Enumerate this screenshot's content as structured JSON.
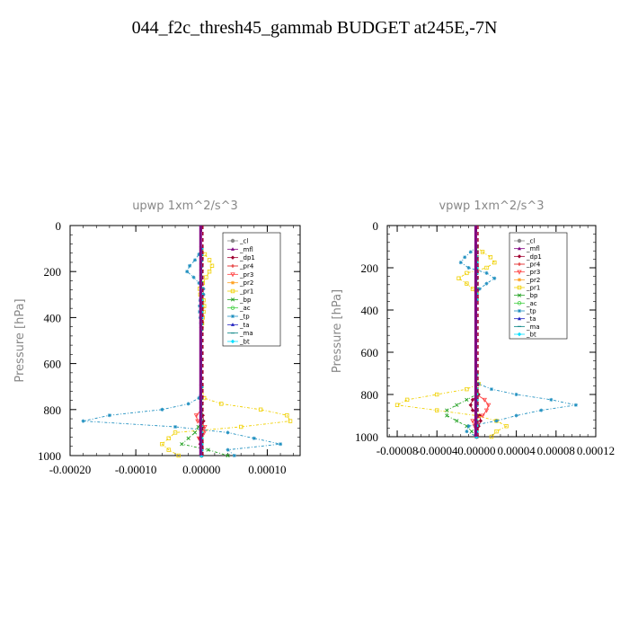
{
  "figure_title": "044_f2c_thresh45_gammab  BUDGET at245E,-7N",
  "legend_names": [
    "_cl",
    "_mfl",
    "_dp1",
    "_pr4",
    "_pr3",
    "_pr2",
    "_pr1",
    "_bp",
    "_ac",
    "_tp",
    "_ta",
    "_ma",
    "_bt"
  ],
  "legend_colors": [
    "#888888",
    "#800080",
    "#a00030",
    "#e01010",
    "#ff4040",
    "#ffa020",
    "#f0d000",
    "#20a020",
    "#40d040",
    "#2090c0",
    "#2020c0",
    "#008080",
    "#00e0ff"
  ],
  "chart_data": [
    {
      "type": "line",
      "title": "upwp   1xm^2/s^3",
      "xlabel": "",
      "ylabel": "Pressure [hPa]",
      "xlim": [
        -0.0002,
        0.00015
      ],
      "ylim": [
        1000,
        0
      ],
      "xticks": [
        "-0.00020",
        "-0.00010",
        "0.00000",
        "0.00010"
      ],
      "xtick_values": [
        -0.0002,
        -0.0001,
        0,
        0.0001
      ],
      "yticks": [
        "0",
        "200",
        "400",
        "600",
        "800",
        "1000"
      ],
      "ytick_values": [
        0,
        200,
        400,
        600,
        800,
        1000
      ],
      "legend": "top-right",
      "pressure": [
        100,
        125,
        150,
        175,
        200,
        225,
        250,
        275,
        300,
        325,
        350,
        375,
        400,
        425,
        450,
        700,
        750,
        775,
        800,
        825,
        850,
        875,
        900,
        925,
        950,
        975,
        1000
      ],
      "series": [
        {
          "name": "_cl",
          "values": [
            0,
            0,
            0,
            0,
            0,
            0,
            0,
            0,
            0,
            0,
            0,
            0,
            0,
            0,
            0,
            0,
            0,
            0,
            0,
            0,
            0,
            0,
            0,
            0,
            0,
            0,
            0
          ]
        },
        {
          "name": "_mfl",
          "values": [
            0,
            0,
            0,
            0,
            0,
            0,
            0,
            0,
            0,
            0,
            0,
            0,
            0,
            0,
            0,
            0,
            0,
            0,
            0,
            0,
            0,
            0,
            0,
            0,
            0,
            0,
            0
          ]
        },
        {
          "name": "_dp1",
          "values": [
            0,
            0,
            0,
            0,
            0,
            0,
            0,
            0,
            0,
            0,
            0,
            0,
            0,
            0,
            0,
            0,
            0,
            0,
            0,
            2e-06,
            3e-06,
            2e-06,
            0,
            -3e-06,
            -2e-06,
            0,
            0
          ]
        },
        {
          "name": "_pr4",
          "values": [
            0,
            0,
            0,
            0,
            0,
            0,
            0,
            0,
            0,
            0,
            0,
            0,
            0,
            0,
            0,
            0,
            0,
            0,
            0,
            0,
            0,
            0,
            0,
            0,
            0,
            0,
            0
          ]
        },
        {
          "name": "_pr3",
          "values": [
            0,
            0,
            0,
            0,
            0,
            0,
            0,
            0,
            0,
            0,
            0,
            0,
            0,
            0,
            0,
            0,
            0,
            0,
            0,
            -8e-06,
            -6e-06,
            5e-06,
            4e-06,
            -4e-06,
            0,
            0,
            0
          ]
        },
        {
          "name": "_pr2",
          "values": [
            0,
            0,
            0,
            0,
            0,
            0,
            0,
            0,
            0,
            0,
            0,
            0,
            0,
            0,
            0,
            0,
            0,
            0,
            0,
            0,
            0,
            0,
            0,
            0,
            0,
            0,
            0
          ]
        },
        {
          "name": "_pr1",
          "values": [
            0,
            5e-06,
            1.2e-05,
            1.6e-05,
            1.2e-05,
            7e-06,
            2e-06,
            -3e-06,
            -2e-06,
            3e-06,
            4e-06,
            3e-06,
            2e-06,
            1e-06,
            0,
            0,
            4e-06,
            3e-05,
            9e-05,
            0.00013,
            0.000135,
            6e-05,
            -4e-05,
            -5e-05,
            -6e-05,
            -5e-05,
            -3.5e-05
          ]
        },
        {
          "name": "_bp",
          "values": [
            0,
            0,
            0,
            0,
            0,
            0,
            0,
            0,
            0,
            0,
            0,
            0,
            0,
            0,
            0,
            0,
            0,
            0,
            0,
            0,
            0,
            -5e-06,
            -1e-05,
            -2e-05,
            -3e-05,
            1e-05,
            4e-05
          ]
        },
        {
          "name": "_ac",
          "values": [
            0,
            0,
            0,
            0,
            0,
            0,
            0,
            0,
            0,
            0,
            0,
            0,
            0,
            0,
            0,
            0,
            0,
            0,
            0,
            0,
            0,
            0,
            0,
            0,
            0,
            0,
            0
          ]
        },
        {
          "name": "_tp",
          "values": [
            0,
            -4e-06,
            -1e-05,
            -1.8e-05,
            -2.2e-05,
            -1.2e-05,
            -4e-06,
            3e-06,
            3e-06,
            -2e-06,
            -3e-06,
            -3e-06,
            -2e-06,
            -1e-06,
            0,
            0,
            -4e-06,
            -2e-05,
            -6e-05,
            -0.00014,
            -0.00018,
            -4e-05,
            4e-05,
            8e-05,
            0.00012,
            4e-05,
            5e-05
          ]
        },
        {
          "name": "_ta",
          "values": [
            0,
            0,
            0,
            0,
            0,
            0,
            0,
            0,
            0,
            0,
            0,
            0,
            0,
            0,
            0,
            0,
            0,
            0,
            0,
            0,
            0,
            0,
            0,
            0,
            0,
            0,
            0
          ]
        },
        {
          "name": "_ma",
          "values": [
            0,
            0,
            0,
            0,
            0,
            0,
            0,
            0,
            0,
            0,
            0,
            0,
            0,
            0,
            0,
            0,
            0,
            0,
            0,
            0,
            0,
            0,
            0,
            0,
            0,
            0,
            0
          ]
        },
        {
          "name": "_bt",
          "values": [
            0,
            0,
            0,
            0,
            0,
            0,
            0,
            0,
            0,
            0,
            0,
            0,
            0,
            0,
            0,
            0,
            0,
            0,
            0,
            0,
            0,
            0,
            0,
            0,
            0,
            0,
            0
          ]
        }
      ]
    },
    {
      "type": "line",
      "title": "vpwp   1xm^2/s^3",
      "xlabel": "",
      "ylabel": "Pressure [hPa]",
      "xlim": [
        -9e-05,
        0.00012
      ],
      "ylim": [
        1000,
        0
      ],
      "xticks": [
        "-0.00008",
        "-0.00004",
        "0.00000",
        "0.00004",
        "0.00008",
        "0.00012"
      ],
      "xtick_values": [
        -8e-05,
        -4e-05,
        0,
        4e-05,
        8e-05,
        0.00012
      ],
      "yticks": [
        "0",
        "200",
        "400",
        "600",
        "800",
        "1000"
      ],
      "ytick_values": [
        0,
        200,
        400,
        600,
        800,
        1000
      ],
      "legend": "top-right",
      "pressure": [
        100,
        125,
        150,
        175,
        200,
        225,
        250,
        275,
        300,
        325,
        350,
        700,
        750,
        775,
        800,
        825,
        850,
        875,
        900,
        925,
        950,
        975,
        1000
      ],
      "series": [
        {
          "name": "_cl",
          "values": [
            0,
            0,
            0,
            0,
            0,
            0,
            0,
            0,
            0,
            0,
            0,
            0,
            0,
            0,
            0,
            0,
            0,
            0,
            0,
            0,
            0,
            0,
            0
          ]
        },
        {
          "name": "_mfl",
          "values": [
            0,
            0,
            0,
            0,
            0,
            0,
            0,
            0,
            0,
            0,
            0,
            0,
            0,
            0,
            0,
            0,
            0,
            0,
            0,
            0,
            0,
            0,
            0
          ]
        },
        {
          "name": "_dp1",
          "values": [
            0,
            0,
            0,
            0,
            0,
            0,
            0,
            0,
            0,
            0,
            0,
            0,
            0,
            0,
            2e-06,
            -4e-06,
            -6e-06,
            -4e-06,
            3e-06,
            4e-06,
            2e-06,
            0,
            0
          ]
        },
        {
          "name": "_pr4",
          "values": [
            0,
            0,
            0,
            0,
            0,
            0,
            0,
            0,
            0,
            0,
            0,
            0,
            0,
            0,
            0,
            0,
            0,
            0,
            0,
            0,
            0,
            0,
            0
          ]
        },
        {
          "name": "_pr3",
          "values": [
            0,
            0,
            0,
            0,
            0,
            0,
            0,
            0,
            0,
            0,
            0,
            0,
            0,
            0,
            0,
            8e-06,
            1.2e-05,
            1e-05,
            6e-06,
            -4e-06,
            -2e-06,
            0,
            0
          ]
        },
        {
          "name": "_pr2",
          "values": [
            0,
            0,
            0,
            0,
            0,
            0,
            0,
            0,
            0,
            0,
            0,
            0,
            0,
            0,
            0,
            0,
            0,
            0,
            0,
            0,
            0,
            0,
            0
          ]
        },
        {
          "name": "_pr1",
          "values": [
            0,
            6e-06,
            1.4e-05,
            1.8e-05,
            1e-05,
            -1e-05,
            -1.8e-05,
            -1e-05,
            -4e-06,
            0,
            0,
            0,
            2e-06,
            -1e-05,
            -4e-05,
            -7e-05,
            -8e-05,
            -4e-05,
            0,
            2e-05,
            3e-05,
            2e-05,
            1.5e-05
          ]
        },
        {
          "name": "_bp",
          "values": [
            0,
            0,
            0,
            0,
            0,
            0,
            0,
            0,
            0,
            0,
            0,
            0,
            0,
            0,
            0,
            -1e-05,
            -2e-05,
            -3e-05,
            -3e-05,
            -2e-05,
            -1e-05,
            -5e-06,
            0
          ]
        },
        {
          "name": "_ac",
          "values": [
            0,
            0,
            0,
            0,
            0,
            0,
            0,
            0,
            0,
            0,
            0,
            0,
            0,
            0,
            0,
            0,
            0,
            0,
            0,
            0,
            0,
            0,
            0
          ]
        },
        {
          "name": "_tp",
          "values": [
            0,
            -6e-06,
            -1.2e-05,
            -1.6e-05,
            -8e-06,
            1e-05,
            1.8e-05,
            1e-05,
            3e-06,
            0,
            0,
            0,
            2e-06,
            1.5e-05,
            4e-05,
            7.5e-05,
            0.0001,
            6.5e-05,
            4e-05,
            2e-05,
            -8e-06,
            -1e-05,
            0
          ]
        },
        {
          "name": "_ta",
          "values": [
            0,
            0,
            0,
            0,
            0,
            0,
            0,
            0,
            0,
            0,
            0,
            0,
            0,
            0,
            0,
            0,
            0,
            0,
            0,
            0,
            0,
            0,
            0
          ]
        },
        {
          "name": "_ma",
          "values": [
            0,
            0,
            0,
            0,
            0,
            0,
            0,
            0,
            0,
            0,
            0,
            0,
            0,
            0,
            0,
            0,
            0,
            0,
            0,
            0,
            0,
            0,
            0
          ]
        },
        {
          "name": "_bt",
          "values": [
            0,
            0,
            0,
            0,
            0,
            0,
            0,
            0,
            0,
            0,
            0,
            0,
            0,
            0,
            0,
            0,
            0,
            0,
            0,
            0,
            0,
            0,
            0
          ]
        }
      ]
    }
  ]
}
